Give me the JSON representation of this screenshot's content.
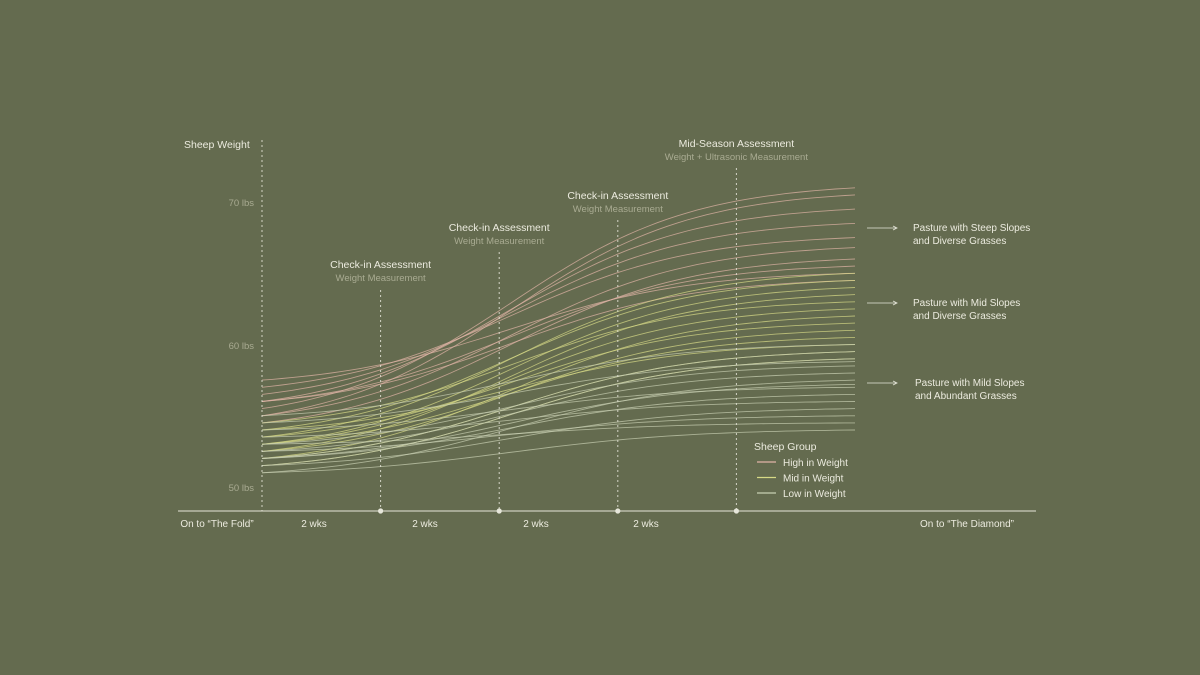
{
  "colors": {
    "background": "#646b4f",
    "text": "#ecebdf",
    "muted_text": "#a9ab92",
    "axis": "#e6e6da",
    "high": "#e0b4a6",
    "mid": "#d7da86",
    "low": "#c8cfb2"
  },
  "chart_data": {
    "type": "line",
    "ylabel": "Sheep Weight",
    "yticks": [
      "70 lbs",
      "60 lbs",
      "50 lbs"
    ],
    "ylim": [
      49,
      75
    ],
    "xlim": [
      0,
      10
    ],
    "grid": false,
    "x_labels": [
      "On to “The Fold”",
      "2 wks",
      "2 wks",
      "2 wks",
      "2 wks",
      "On to “The Diamond”"
    ],
    "assessments": [
      {
        "x": 2,
        "title": "Check-in Assessment",
        "subtitle": "Weight Measurement"
      },
      {
        "x": 4,
        "title": "Check-in Assessment",
        "subtitle": "Weight Measurement"
      },
      {
        "x": 6,
        "title": "Check-in Assessment",
        "subtitle": "Weight Measurement"
      },
      {
        "x": 8,
        "title": "Mid-Season Assessment",
        "subtitle": "Weight + Ultrasonic Measurement"
      }
    ],
    "pastures": [
      {
        "label_lines": [
          "Pasture with Steep Slopes",
          "and Diverse Grasses"
        ]
      },
      {
        "label_lines": [
          "Pasture with Mid Slopes",
          "and Diverse Grasses"
        ]
      },
      {
        "label_lines": [
          "Pasture with Mild Slopes",
          "and Abundant Grasses"
        ]
      }
    ],
    "legend": {
      "title": "Sheep Group",
      "placement": "bottom-right",
      "items": [
        {
          "label": "High in Weight",
          "group": "high"
        },
        {
          "label": "Mid in Weight",
          "group": "mid"
        },
        {
          "label": "Low in Weight",
          "group": "low"
        }
      ]
    },
    "series_groups": [
      {
        "group": "high",
        "start": [
          55.5,
          55.0,
          56.0,
          56.5,
          57.0,
          55.0,
          54.5,
          56.0,
          57.5,
          56.0
        ],
        "end": [
          71.0,
          70.5,
          69.5,
          68.5,
          67.5,
          66.8,
          66.0,
          65.5,
          65.0,
          64.5
        ]
      },
      {
        "group": "mid",
        "start": [
          53.5,
          54.0,
          53.0,
          52.5,
          54.5,
          53.0,
          52.0,
          53.5,
          52.5,
          53.0,
          54.0,
          52.0,
          51.5
        ],
        "end": [
          65.0,
          64.5,
          64.0,
          63.5,
          63.0,
          62.5,
          62.0,
          61.5,
          61.0,
          60.5,
          60.0,
          59.5,
          59.0
        ]
      },
      {
        "group": "low",
        "start": [
          52.0,
          51.5,
          53.0,
          52.5,
          51.0,
          54.0,
          52.0,
          53.5,
          51.5,
          52.5,
          53.0,
          51.0,
          55.0,
          54.5,
          52.0
        ],
        "end": [
          59.5,
          59.0,
          58.5,
          58.0,
          57.5,
          57.0,
          56.5,
          56.0,
          55.5,
          55.0,
          54.5,
          54.0,
          60.0,
          58.8,
          57.2
        ]
      }
    ]
  }
}
